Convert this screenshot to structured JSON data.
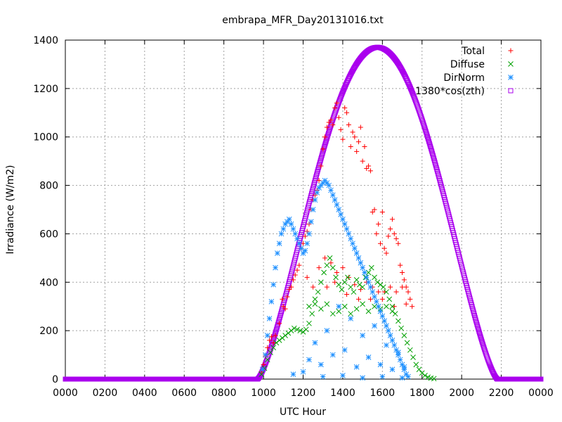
{
  "chart_data": {
    "type": "scatter",
    "title": "embrapa_MFR_Day20131016.txt",
    "xlabel": "UTC Hour",
    "ylabel": "Irradiance (W/m2)",
    "xlim": [
      0,
      24
    ],
    "ylim": [
      0,
      1400
    ],
    "x_ticks": [
      "0000",
      "0200",
      "0400",
      "0600",
      "0800",
      "1000",
      "1200",
      "1400",
      "1600",
      "1800",
      "2000",
      "2200",
      "0000"
    ],
    "y_ticks": [
      "0",
      "200",
      "400",
      "600",
      "800",
      "1000",
      "1200",
      "1400"
    ],
    "grid": true,
    "legend_position": "top-right",
    "series": [
      {
        "name": "Total",
        "marker": "plus",
        "color": "#ff0000",
        "points": [
          [
            9.9,
            30
          ],
          [
            10.0,
            60
          ],
          [
            10.1,
            95
          ],
          [
            10.2,
            130
          ],
          [
            10.3,
            160
          ],
          [
            10.4,
            175
          ],
          [
            10.5,
            150
          ],
          [
            10.6,
            180
          ],
          [
            10.8,
            230
          ],
          [
            10.95,
            330
          ],
          [
            11.0,
            300
          ],
          [
            11.1,
            290
          ],
          [
            11.2,
            340
          ],
          [
            11.3,
            370
          ],
          [
            11.4,
            380
          ],
          [
            11.5,
            410
          ],
          [
            11.6,
            430
          ],
          [
            11.7,
            450
          ],
          [
            11.8,
            470
          ],
          [
            11.9,
            540
          ],
          [
            12.0,
            560
          ],
          [
            12.1,
            590
          ],
          [
            12.2,
            610
          ],
          [
            12.3,
            640
          ],
          [
            12.4,
            700
          ],
          [
            12.5,
            740
          ],
          [
            12.6,
            760
          ],
          [
            12.7,
            780
          ],
          [
            12.8,
            820
          ],
          [
            12.9,
            880
          ],
          [
            13.0,
            950
          ],
          [
            13.1,
            1000
          ],
          [
            13.2,
            1040
          ],
          [
            13.3,
            1060
          ],
          [
            13.4,
            1070
          ],
          [
            13.5,
            1050
          ],
          [
            13.6,
            1120
          ],
          [
            13.7,
            1140
          ],
          [
            13.8,
            1080
          ],
          [
            13.9,
            1030
          ],
          [
            14.0,
            990
          ],
          [
            14.1,
            1120
          ],
          [
            14.2,
            1100
          ],
          [
            14.3,
            1050
          ],
          [
            14.4,
            960
          ],
          [
            14.5,
            1020
          ],
          [
            14.6,
            1000
          ],
          [
            14.7,
            940
          ],
          [
            14.8,
            980
          ],
          [
            14.9,
            1040
          ],
          [
            15.0,
            900
          ],
          [
            15.1,
            960
          ],
          [
            15.2,
            870
          ],
          [
            15.3,
            880
          ],
          [
            15.4,
            860
          ],
          [
            15.5,
            690
          ],
          [
            15.6,
            700
          ],
          [
            15.7,
            600
          ],
          [
            15.8,
            640
          ],
          [
            15.9,
            560
          ],
          [
            16.0,
            690
          ],
          [
            16.1,
            540
          ],
          [
            16.2,
            520
          ],
          [
            16.3,
            590
          ],
          [
            16.4,
            620
          ],
          [
            16.5,
            660
          ],
          [
            16.6,
            600
          ],
          [
            16.7,
            580
          ],
          [
            16.8,
            560
          ],
          [
            16.9,
            470
          ],
          [
            17.0,
            440
          ],
          [
            17.1,
            410
          ],
          [
            17.2,
            380
          ],
          [
            17.3,
            360
          ],
          [
            17.4,
            330
          ],
          [
            17.5,
            300
          ],
          [
            12.2,
            420
          ],
          [
            12.5,
            380
          ],
          [
            12.8,
            460
          ],
          [
            13.1,
            500
          ],
          [
            13.4,
            480
          ],
          [
            13.7,
            440
          ],
          [
            14.0,
            460
          ],
          [
            14.3,
            420
          ],
          [
            14.6,
            390
          ],
          [
            14.9,
            370
          ],
          [
            15.2,
            400
          ],
          [
            15.5,
            380
          ],
          [
            15.8,
            360
          ],
          [
            16.1,
            360
          ],
          [
            16.4,
            380
          ],
          [
            16.7,
            360
          ],
          [
            17.0,
            380
          ],
          [
            13.2,
            380
          ],
          [
            13.6,
            400
          ],
          [
            14.2,
            350
          ],
          [
            14.8,
            330
          ],
          [
            15.4,
            330
          ],
          [
            16.0,
            330
          ],
          [
            16.6,
            300
          ],
          [
            17.2,
            310
          ]
        ]
      },
      {
        "name": "Diffuse",
        "marker": "cross",
        "color": "#00a000",
        "points": [
          [
            9.9,
            20
          ],
          [
            10.05,
            45
          ],
          [
            10.2,
            80
          ],
          [
            10.35,
            110
          ],
          [
            10.5,
            130
          ],
          [
            10.65,
            150
          ],
          [
            10.8,
            160
          ],
          [
            10.95,
            170
          ],
          [
            11.1,
            180
          ],
          [
            11.25,
            190
          ],
          [
            11.4,
            200
          ],
          [
            11.55,
            210
          ],
          [
            11.7,
            205
          ],
          [
            11.85,
            200
          ],
          [
            12.0,
            195
          ],
          [
            12.15,
            205
          ],
          [
            12.3,
            230
          ],
          [
            12.45,
            270
          ],
          [
            12.6,
            310
          ],
          [
            12.75,
            360
          ],
          [
            12.9,
            400
          ],
          [
            13.05,
            440
          ],
          [
            13.2,
            470
          ],
          [
            13.35,
            500
          ],
          [
            13.5,
            460
          ],
          [
            13.65,
            420
          ],
          [
            13.8,
            390
          ],
          [
            13.95,
            370
          ],
          [
            14.1,
            400
          ],
          [
            14.25,
            420
          ],
          [
            14.4,
            380
          ],
          [
            14.55,
            360
          ],
          [
            14.7,
            410
          ],
          [
            14.85,
            390
          ],
          [
            15.0,
            380
          ],
          [
            15.15,
            420
          ],
          [
            15.3,
            440
          ],
          [
            15.45,
            460
          ],
          [
            15.6,
            420
          ],
          [
            15.75,
            400
          ],
          [
            15.9,
            390
          ],
          [
            16.05,
            380
          ],
          [
            16.2,
            360
          ],
          [
            16.35,
            330
          ],
          [
            16.5,
            300
          ],
          [
            16.65,
            270
          ],
          [
            16.8,
            240
          ],
          [
            16.95,
            210
          ],
          [
            17.1,
            180
          ],
          [
            17.25,
            150
          ],
          [
            17.4,
            120
          ],
          [
            17.55,
            90
          ],
          [
            17.7,
            60
          ],
          [
            17.85,
            40
          ],
          [
            18.0,
            25
          ],
          [
            18.15,
            15
          ],
          [
            18.3,
            8
          ],
          [
            18.45,
            4
          ],
          [
            18.6,
            2
          ],
          [
            12.3,
            300
          ],
          [
            12.6,
            330
          ],
          [
            12.9,
            290
          ],
          [
            13.2,
            310
          ],
          [
            13.5,
            270
          ],
          [
            13.8,
            280
          ],
          [
            14.1,
            300
          ],
          [
            14.4,
            270
          ],
          [
            14.7,
            290
          ],
          [
            15.0,
            310
          ],
          [
            15.3,
            280
          ],
          [
            15.6,
            300
          ],
          [
            15.9,
            290
          ],
          [
            16.2,
            300
          ],
          [
            16.5,
            280
          ]
        ]
      },
      {
        "name": "DirNorm",
        "marker": "star",
        "color": "#1e90ff",
        "points": [
          [
            9.95,
            40
          ],
          [
            10.1,
            100
          ],
          [
            10.2,
            180
          ],
          [
            10.3,
            250
          ],
          [
            10.4,
            320
          ],
          [
            10.5,
            390
          ],
          [
            10.6,
            460
          ],
          [
            10.7,
            520
          ],
          [
            10.8,
            560
          ],
          [
            10.9,
            600
          ],
          [
            11.0,
            620
          ],
          [
            11.1,
            640
          ],
          [
            11.2,
            650
          ],
          [
            11.3,
            660
          ],
          [
            11.4,
            640
          ],
          [
            11.5,
            620
          ],
          [
            11.6,
            600
          ],
          [
            11.7,
            580
          ],
          [
            11.8,
            560
          ],
          [
            11.9,
            540
          ],
          [
            12.0,
            520
          ],
          [
            12.1,
            530
          ],
          [
            12.2,
            560
          ],
          [
            12.3,
            600
          ],
          [
            12.4,
            650
          ],
          [
            12.5,
            700
          ],
          [
            12.6,
            740
          ],
          [
            12.7,
            770
          ],
          [
            12.8,
            790
          ],
          [
            12.9,
            800
          ],
          [
            13.0,
            810
          ],
          [
            13.1,
            820
          ],
          [
            13.2,
            810
          ],
          [
            13.3,
            800
          ],
          [
            13.4,
            780
          ],
          [
            13.5,
            760
          ],
          [
            13.6,
            740
          ],
          [
            13.7,
            720
          ],
          [
            13.8,
            700
          ],
          [
            13.9,
            680
          ],
          [
            14.0,
            660
          ],
          [
            14.1,
            640
          ],
          [
            14.2,
            620
          ],
          [
            14.3,
            600
          ],
          [
            14.4,
            580
          ],
          [
            14.5,
            560
          ],
          [
            14.6,
            540
          ],
          [
            14.7,
            520
          ],
          [
            14.8,
            500
          ],
          [
            14.9,
            480
          ],
          [
            15.0,
            460
          ],
          [
            15.1,
            440
          ],
          [
            15.2,
            420
          ],
          [
            15.3,
            400
          ],
          [
            15.4,
            380
          ],
          [
            15.5,
            360
          ],
          [
            15.6,
            340
          ],
          [
            15.7,
            320
          ],
          [
            15.8,
            300
          ],
          [
            15.9,
            280
          ],
          [
            16.0,
            260
          ],
          [
            16.1,
            240
          ],
          [
            16.2,
            220
          ],
          [
            16.3,
            200
          ],
          [
            16.4,
            180
          ],
          [
            16.5,
            160
          ],
          [
            16.6,
            140
          ],
          [
            16.7,
            120
          ],
          [
            16.8,
            100
          ],
          [
            16.9,
            80
          ],
          [
            17.0,
            60
          ],
          [
            17.1,
            40
          ],
          [
            17.2,
            20
          ],
          [
            17.3,
            10
          ],
          [
            12.3,
            80
          ],
          [
            12.6,
            150
          ],
          [
            12.9,
            60
          ],
          [
            13.2,
            200
          ],
          [
            13.5,
            100
          ],
          [
            13.8,
            300
          ],
          [
            14.1,
            120
          ],
          [
            14.4,
            250
          ],
          [
            14.7,
            50
          ],
          [
            15.0,
            180
          ],
          [
            15.3,
            90
          ],
          [
            15.6,
            220
          ],
          [
            15.9,
            60
          ],
          [
            16.2,
            140
          ],
          [
            16.5,
            40
          ],
          [
            16.8,
            110
          ],
          [
            17.1,
            50
          ],
          [
            11.5,
            20
          ],
          [
            12.0,
            30
          ],
          [
            13.0,
            10
          ],
          [
            14.0,
            15
          ],
          [
            15.0,
            5
          ],
          [
            16.0,
            10
          ],
          [
            17.0,
            5
          ]
        ]
      },
      {
        "name": "1380*cos(zth)",
        "marker": "square",
        "color": "#aa00ee",
        "curve": {
          "sunrise": 9.7,
          "sunset": 21.8,
          "peak_x": 15.75,
          "peak_y": 1370,
          "exponent": 1.35,
          "step": 0.025
        }
      }
    ]
  }
}
